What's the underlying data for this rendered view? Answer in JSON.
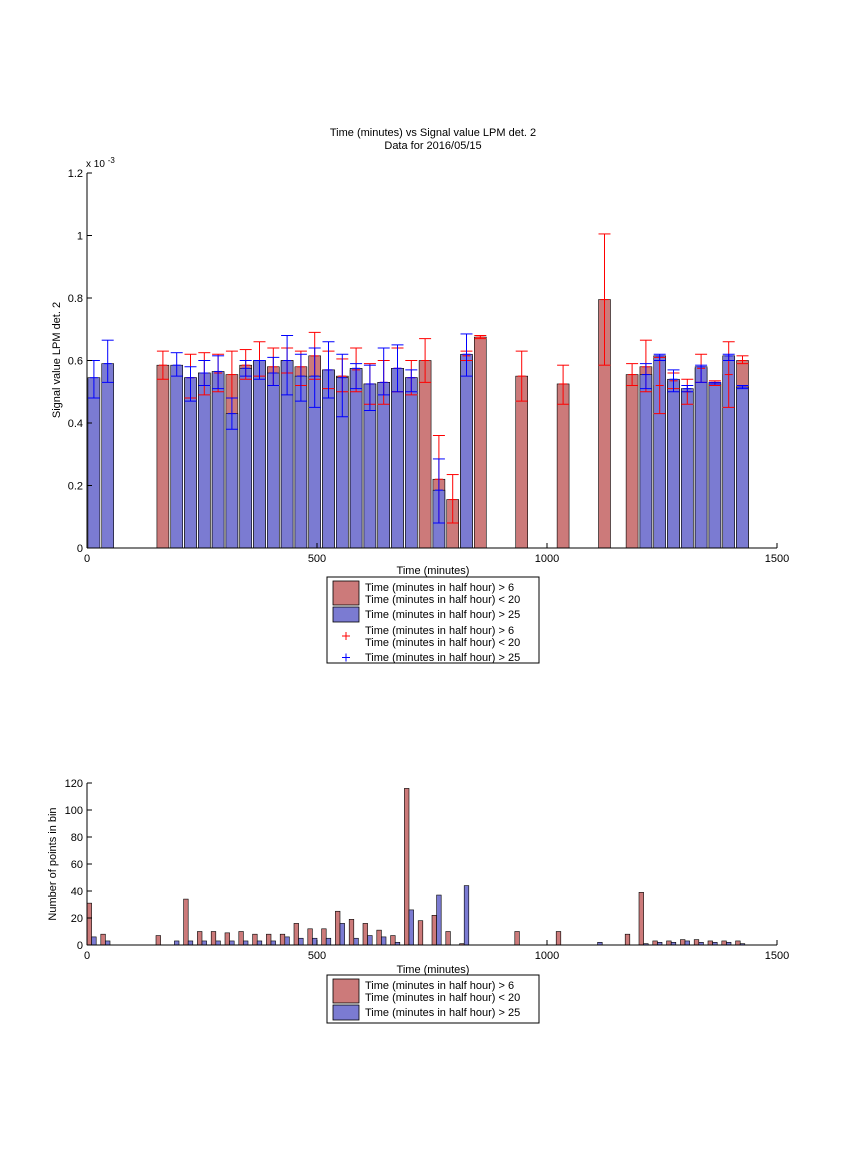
{
  "colors": {
    "red_fill": "#cc7a7a",
    "blue_fill": "#7b7bd2",
    "red_err": "#ff0000",
    "blue_err": "#0000ff",
    "axis": "#000000"
  },
  "chart_data": [
    {
      "type": "bar",
      "title": "Time (minutes) vs Signal value LPM det. 2",
      "subtitle": "Data for 2016/05/15",
      "xlabel": "Time (minutes)",
      "ylabel": "Signal value LPM det. 2",
      "y_exponent_label": "x 10",
      "y_exponent_power": "-3",
      "xlim": [
        0,
        1500
      ],
      "ylim": [
        0,
        1.2
      ],
      "xticks": [
        "0",
        "500",
        "1000",
        "1500"
      ],
      "yticks": [
        "0",
        "0.2",
        "0.4",
        "0.6",
        "0.8",
        "1",
        "1.2"
      ],
      "grid": false,
      "legend": {
        "placement": "below",
        "entries": [
          {
            "text": "Time (minutes in half hour) > 6",
            "text2": "Time (minutes in half hour) < 20",
            "marker": "bar-red"
          },
          {
            "text": "Time (minutes in half hour) > 25",
            "text2": "",
            "marker": "bar-blue"
          },
          {
            "text": "Time (minutes in half hour) > 6",
            "text2": "Time (minutes in half hour) < 20",
            "marker": "plus-red"
          },
          {
            "text": "Time (minutes in half hour) > 25",
            "text2": "",
            "marker": "plus-blue"
          }
        ]
      },
      "series": [
        {
          "key": "red",
          "x": [
            165,
            225,
            255,
            285,
            315,
            345,
            375,
            405,
            435,
            465,
            495,
            525,
            555,
            585,
            615,
            645,
            675,
            705,
            735,
            765,
            795,
            825,
            855,
            945,
            1035,
            1125,
            1185,
            1215,
            1245,
            1275,
            1305,
            1335,
            1365,
            1395,
            1425
          ],
          "values": [
            0.585,
            0.545,
            0.56,
            0.56,
            0.555,
            0.585,
            0.6,
            0.58,
            0.6,
            0.58,
            0.615,
            0.57,
            0.55,
            0.57,
            0.525,
            0.53,
            0.575,
            0.545,
            0.6,
            0.22,
            0.155,
            0.615,
            0.675,
            0.55,
            0.525,
            0.795,
            0.555,
            0.58,
            0.52,
            0.535,
            0.5,
            0.575,
            0.53,
            0.555,
            0.6
          ],
          "err_low": [
            0.54,
            0.48,
            0.49,
            0.5,
            0.48,
            0.54,
            0.55,
            0.52,
            0.56,
            0.52,
            0.54,
            0.51,
            0.5,
            0.5,
            0.46,
            0.46,
            0.5,
            0.49,
            0.53,
            0.08,
            0.08,
            0.6,
            0.67,
            0.47,
            0.46,
            0.585,
            0.52,
            0.5,
            0.43,
            0.51,
            0.46,
            0.53,
            0.52,
            0.45,
            0.59
          ],
          "err_high": [
            0.63,
            0.62,
            0.625,
            0.62,
            0.63,
            0.635,
            0.66,
            0.64,
            0.64,
            0.63,
            0.69,
            0.63,
            0.605,
            0.64,
            0.59,
            0.6,
            0.64,
            0.6,
            0.67,
            0.36,
            0.235,
            0.63,
            0.68,
            0.63,
            0.585,
            1.005,
            0.59,
            0.665,
            0.61,
            0.56,
            0.54,
            0.62,
            0.535,
            0.66,
            0.615
          ]
        },
        {
          "key": "blue",
          "x": [
            15,
            45,
            195,
            225,
            255,
            285,
            315,
            345,
            375,
            405,
            435,
            465,
            495,
            525,
            555,
            585,
            615,
            645,
            675,
            705,
            765,
            825,
            1215,
            1245,
            1275,
            1305,
            1335,
            1365,
            1395,
            1425
          ],
          "values": [
            0.545,
            0.59,
            0.585,
            0.545,
            0.56,
            0.565,
            0.43,
            0.575,
            0.6,
            0.56,
            0.6,
            0.55,
            0.55,
            0.57,
            0.545,
            0.575,
            0.525,
            0.53,
            0.575,
            0.545,
            0.185,
            0.62,
            0.555,
            0.615,
            0.54,
            0.51,
            0.58,
            0.525,
            0.615,
            0.515
          ],
          "err_low": [
            0.48,
            0.53,
            0.55,
            0.47,
            0.52,
            0.51,
            0.38,
            0.55,
            0.54,
            0.52,
            0.49,
            0.47,
            0.45,
            0.48,
            0.42,
            0.51,
            0.44,
            0.49,
            0.5,
            0.5,
            0.08,
            0.55,
            0.51,
            0.6,
            0.5,
            0.5,
            0.53,
            0.525,
            0.6,
            0.51
          ],
          "err_high": [
            0.6,
            0.665,
            0.625,
            0.58,
            0.6,
            0.615,
            0.48,
            0.6,
            0.6,
            0.61,
            0.68,
            0.62,
            0.64,
            0.66,
            0.62,
            0.59,
            0.585,
            0.64,
            0.65,
            0.57,
            0.285,
            0.685,
            0.59,
            0.62,
            0.57,
            0.52,
            0.585,
            0.53,
            0.62,
            0.52
          ]
        }
      ]
    },
    {
      "type": "bar",
      "title": "",
      "xlabel": "Time (minutes)",
      "ylabel": "Number of points in bin",
      "xlim": [
        0,
        1500
      ],
      "ylim": [
        0,
        120
      ],
      "xticks": [
        "0",
        "500",
        "1000",
        "1500"
      ],
      "yticks": [
        "0",
        "20",
        "40",
        "60",
        "80",
        "100",
        "120"
      ],
      "grid": false,
      "legend": {
        "placement": "below",
        "entries": [
          {
            "text": "Time (minutes in half hour) > 6",
            "text2": "Time (minutes in half hour) < 20",
            "marker": "bar-red"
          },
          {
            "text": "Time (minutes in half hour) > 25",
            "text2": "",
            "marker": "bar-blue"
          }
        ]
      },
      "series": [
        {
          "key": "red",
          "x": [
            5,
            35,
            155,
            215,
            245,
            275,
            305,
            335,
            365,
            395,
            425,
            455,
            485,
            515,
            545,
            575,
            605,
            635,
            665,
            695,
            725,
            755,
            785,
            815,
            845,
            935,
            1025,
            1175,
            1205,
            1235,
            1265,
            1295,
            1325,
            1355,
            1385,
            1415
          ],
          "values": [
            31,
            8,
            7,
            34,
            10,
            10,
            9,
            10,
            8,
            8,
            8,
            16,
            12,
            12,
            25,
            19,
            16,
            11,
            7,
            116,
            18,
            22,
            10,
            1,
            0,
            10,
            10,
            8,
            39,
            3,
            3,
            4,
            4,
            3,
            3,
            3
          ]
        },
        {
          "key": "blue",
          "x": [
            15,
            45,
            195,
            225,
            255,
            285,
            315,
            345,
            375,
            405,
            435,
            465,
            495,
            525,
            555,
            585,
            615,
            645,
            675,
            705,
            765,
            825,
            1115,
            1215,
            1245,
            1275,
            1305,
            1335,
            1365,
            1395,
            1425
          ],
          "values": [
            6,
            3,
            3,
            3,
            3,
            3,
            3,
            3,
            3,
            3,
            6,
            5,
            5,
            5,
            16,
            5,
            7,
            6,
            2,
            26,
            37,
            44,
            2,
            1,
            2,
            2,
            3,
            2,
            2,
            2,
            1
          ]
        }
      ]
    }
  ]
}
